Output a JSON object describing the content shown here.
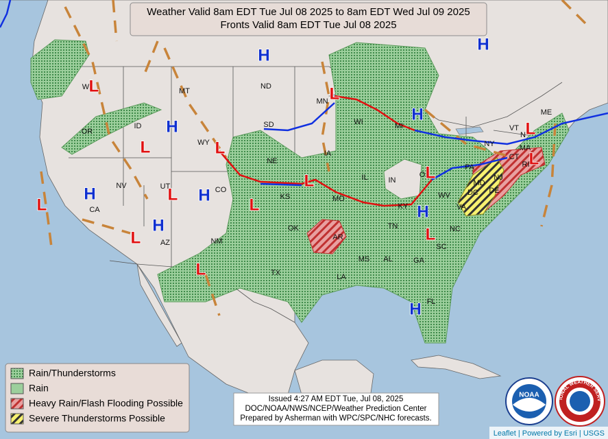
{
  "header": {
    "title_line1": "Weather Valid 8am EDT Tue Jul 08 2025 to 8am EDT Wed Jul 09 2025",
    "title_line2": "Fronts Valid 8am EDT Tue Jul 08 2025"
  },
  "states": [
    "W",
    "OR",
    "ID",
    "MT",
    "ND",
    "MN",
    "WI",
    "MI",
    "SD",
    "WY",
    "NE",
    "IA",
    "IL",
    "IN",
    "O",
    "PA",
    "NY",
    "VT",
    "N",
    "ME",
    "MA",
    "CT",
    "RI",
    "NJ",
    "DE",
    "MD",
    "DC",
    "VA",
    "WV",
    "KY",
    "MO",
    "KS",
    "CO",
    "UT",
    "NV",
    "CA",
    "AZ",
    "NM",
    "OK",
    "AR",
    "TN",
    "NC",
    "SC",
    "GA",
    "AL",
    "MS",
    "LA",
    "TX",
    "FL"
  ],
  "pressure_centers": [
    "H",
    "H",
    "H",
    "H",
    "H",
    "H",
    "H",
    "H",
    "H",
    "L",
    "L",
    "L",
    "L",
    "L",
    "L",
    "L",
    "L",
    "L",
    "L",
    "L",
    "L",
    "L",
    "L"
  ],
  "legend": {
    "items": [
      "Rain/Thunderstorms",
      "Rain",
      "Heavy Rain/Flash Flooding Possible",
      "Severe Thunderstorms Possible"
    ]
  },
  "issued": {
    "lines": [
      "Issued  4:27 AM EDT  Tue, Jul 08, 2025",
      "DOC/NOAA/NWS/NCEP/Weather Prediction Center",
      "Prepared by Asherman with WPC/SPC/NHC forecasts."
    ]
  },
  "logos": {
    "noaa": "NOAA",
    "nws": "NATIONAL WEATHER SERVICE"
  },
  "attribution": "Leaflet | Powered by Esri | USGS"
}
